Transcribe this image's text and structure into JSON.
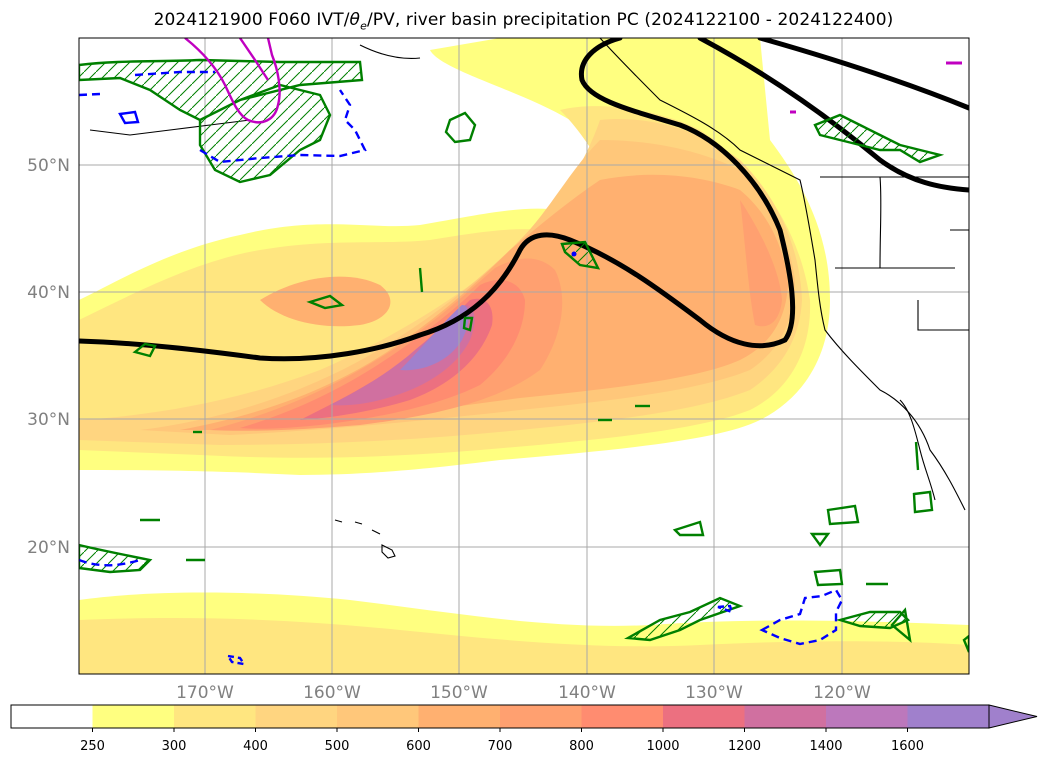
{
  "title": {
    "prefix": "2024121900 F060 IVT/",
    "theta_symbol": "θ",
    "theta_sub": "e",
    "suffix": "/PV, river basin precipitation PC (2024122100 - 2024122400)"
  },
  "map": {
    "projection": "lat-lon",
    "lon_range": [
      -180,
      -110
    ],
    "lat_range": [
      10,
      60
    ],
    "gridlines": true,
    "lat_ticks": [
      {
        "value": 20,
        "label": "20°N"
      },
      {
        "value": 30,
        "label": "30°N"
      },
      {
        "value": 40,
        "label": "40°N"
      },
      {
        "value": 50,
        "label": "50°N"
      }
    ],
    "lon_ticks": [
      {
        "value": -170,
        "label": "170°W"
      },
      {
        "value": -160,
        "label": "160°W"
      },
      {
        "value": -150,
        "label": "150°W"
      },
      {
        "value": -140,
        "label": "140°W"
      },
      {
        "value": -130,
        "label": "130°W"
      },
      {
        "value": -120,
        "label": "120°W"
      }
    ],
    "layers": {
      "ivt_fill": "filled contours of integrated vapor transport",
      "theta_e_contour": {
        "color": "#000000",
        "style": "solid thick"
      },
      "pv_contours": {
        "colors": [
          "#008000",
          "#0000ff",
          "#c000c0"
        ]
      }
    }
  },
  "colorbar": {
    "levels": [
      250,
      300,
      400,
      500,
      600,
      700,
      800,
      1000,
      1200,
      1400,
      1600
    ],
    "tick_labels": [
      "250",
      "300",
      "400",
      "500",
      "600",
      "700",
      "800",
      "1000",
      "1200",
      "1400",
      "1600"
    ],
    "colors": [
      "#ffffff",
      "#ffff80",
      "#ffe680",
      "#ffd580",
      "#ffc77a",
      "#ffb070",
      "#ffa070",
      "#ff8c70",
      "#ec7080",
      "#d070a0",
      "#bc78bc",
      "#a080cc"
    ],
    "extend": "max"
  }
}
